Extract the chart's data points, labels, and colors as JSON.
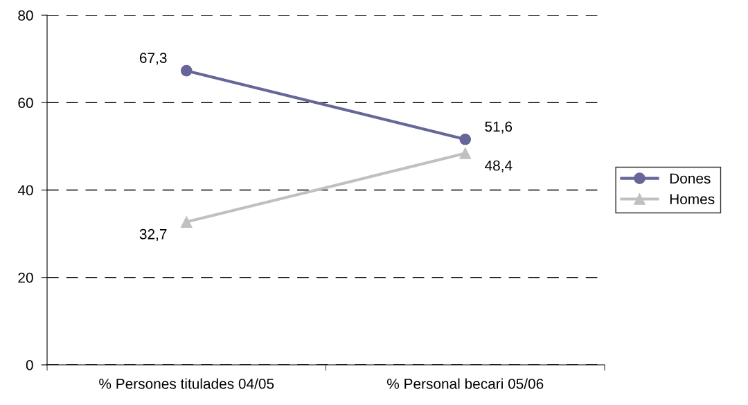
{
  "chart_data": {
    "type": "line",
    "categories": [
      "% Persones titulades 04/05",
      "% Personal becari 05/06"
    ],
    "series": [
      {
        "name": "Dones",
        "color": "#666699",
        "marker": "circle",
        "values": [
          67.3,
          51.6
        ],
        "value_labels": [
          "67,3",
          "51,6"
        ]
      },
      {
        "name": "Homes",
        "color": "#c0c0c0",
        "marker": "triangle",
        "values": [
          32.7,
          48.4
        ],
        "value_labels": [
          "32,7",
          "48,4"
        ]
      }
    ],
    "ylim": [
      0,
      80
    ],
    "yticks": [
      0,
      20,
      40,
      60,
      80
    ],
    "grid": "y",
    "legend": "right",
    "line_style": "solid"
  }
}
